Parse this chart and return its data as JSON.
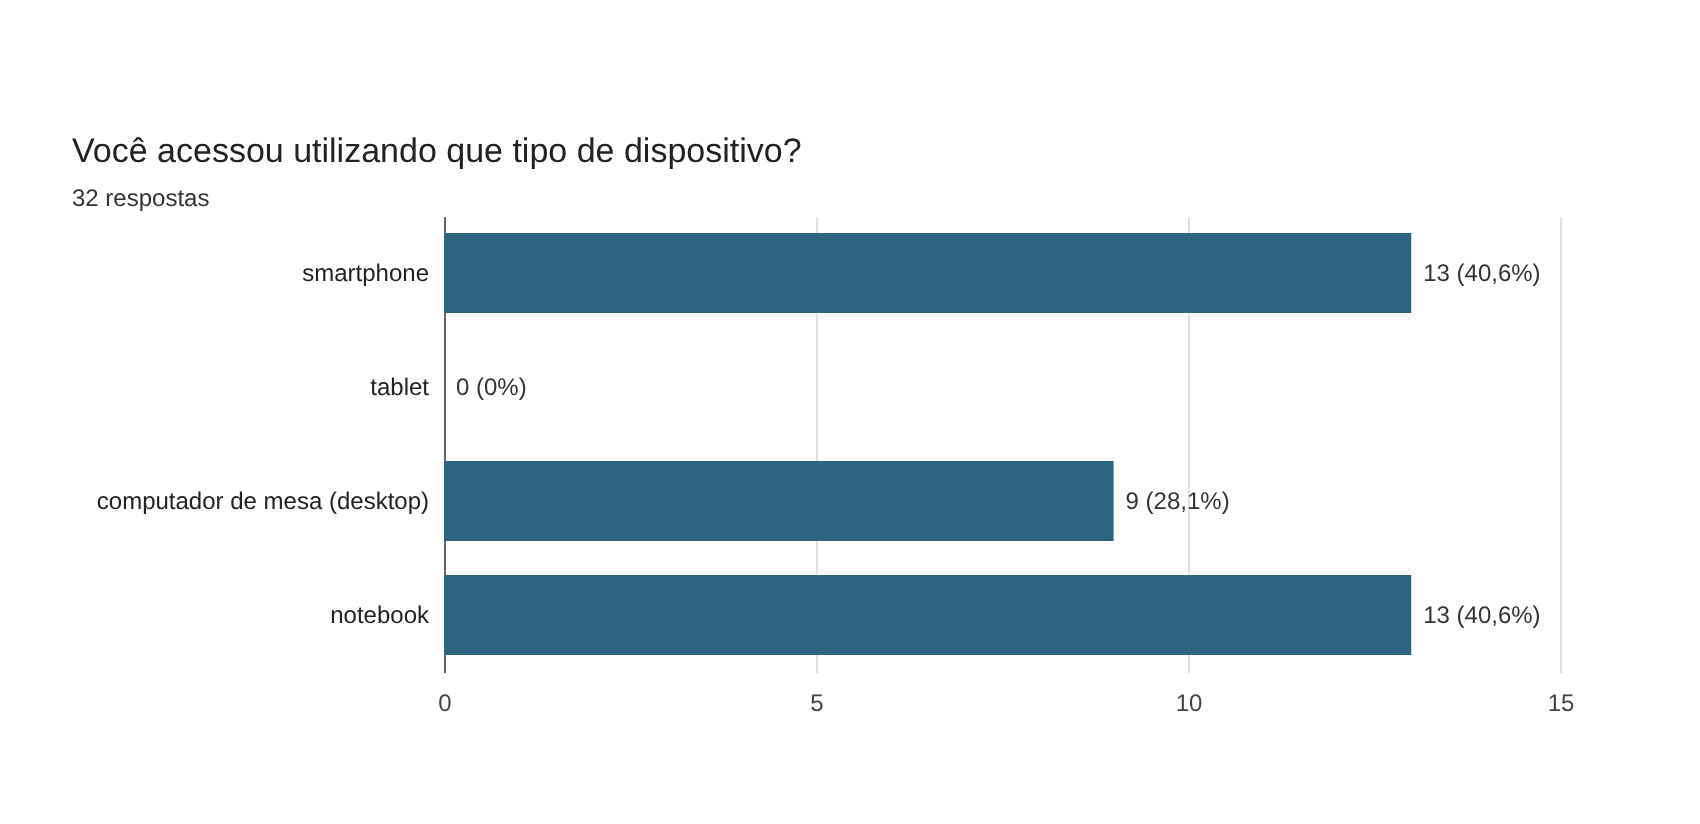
{
  "chart_data": {
    "type": "bar",
    "orientation": "horizontal",
    "title": "Você acessou utilizando que tipo de dispositivo?",
    "subtitle": "32 respostas",
    "categories": [
      "smartphone",
      "tablet",
      "computador de mesa (desktop)",
      "notebook"
    ],
    "values": [
      13,
      0,
      9,
      13
    ],
    "value_labels": [
      "13 (40,6%)",
      "0 (0%)",
      "9 (28,1%)",
      "13 (40,6%)"
    ],
    "color": "#2d6580",
    "xlim": [
      0,
      15
    ],
    "xticks": [
      0,
      5,
      10,
      15
    ],
    "grid": "x"
  }
}
